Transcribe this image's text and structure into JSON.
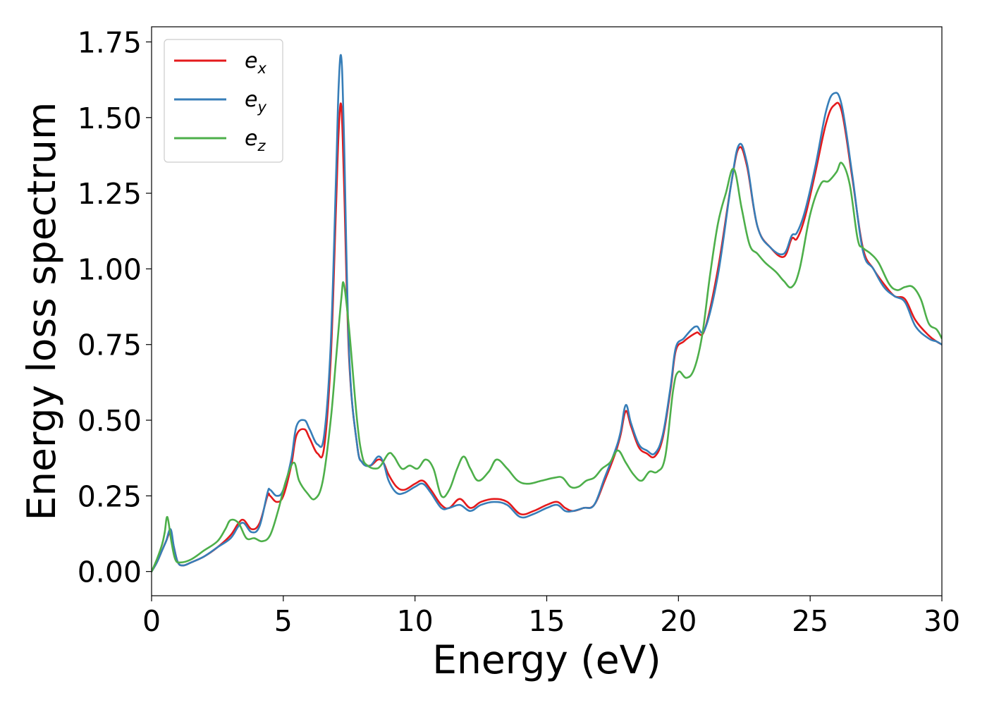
{
  "chart_data": {
    "type": "line",
    "xlabel": "Energy (eV)",
    "ylabel": "Energy loss spectrum",
    "xlim": [
      0,
      30
    ],
    "ylim": [
      -0.08,
      1.8
    ],
    "xticks": [
      "0",
      "5",
      "10",
      "15",
      "20",
      "25",
      "30"
    ],
    "yticks": [
      "0.00",
      "0.25",
      "0.50",
      "0.75",
      "1.00",
      "1.25",
      "1.50",
      "1.75"
    ],
    "grid": false,
    "legend_position": "upper-left",
    "series": [
      {
        "name": "e_x",
        "legend_main": "e",
        "legend_sub": "x",
        "color": "#e41a1c",
        "x": [
          0,
          0.2,
          0.4,
          0.55,
          0.72,
          0.85,
          1.0,
          1.2,
          1.5,
          2.0,
          2.5,
          3.0,
          3.3,
          3.5,
          3.8,
          4.1,
          4.4,
          4.5,
          4.75,
          5.0,
          5.3,
          5.5,
          5.8,
          6.0,
          6.3,
          6.55,
          6.8,
          7.0,
          7.1,
          7.2,
          7.3,
          7.5,
          7.8,
          8.0,
          8.3,
          8.6,
          8.8,
          9.0,
          9.3,
          9.6,
          10.0,
          10.3,
          10.6,
          11.0,
          11.3,
          11.7,
          12.1,
          12.5,
          13.0,
          13.5,
          14.0,
          14.5,
          15.0,
          15.4,
          15.7,
          16.0,
          16.4,
          16.8,
          17.2,
          17.6,
          17.8,
          18.0,
          18.2,
          18.5,
          18.8,
          19.1,
          19.4,
          19.7,
          19.9,
          20.2,
          20.5,
          20.7,
          21.0,
          21.5,
          22.0,
          22.3,
          22.6,
          23.0,
          23.5,
          24.0,
          24.3,
          24.5,
          24.8,
          25.2,
          25.6,
          25.9,
          26.2,
          26.6,
          27.0,
          27.4,
          27.8,
          28.2,
          28.6,
          29.0,
          29.5,
          29.8,
          30.0
        ],
        "y": [
          0.0,
          0.03,
          0.07,
          0.1,
          0.13,
          0.08,
          0.03,
          0.02,
          0.03,
          0.05,
          0.08,
          0.12,
          0.16,
          0.17,
          0.14,
          0.16,
          0.25,
          0.25,
          0.23,
          0.25,
          0.35,
          0.45,
          0.47,
          0.44,
          0.39,
          0.41,
          0.7,
          1.2,
          1.45,
          1.54,
          1.3,
          0.7,
          0.42,
          0.36,
          0.35,
          0.37,
          0.36,
          0.32,
          0.28,
          0.27,
          0.29,
          0.3,
          0.27,
          0.22,
          0.21,
          0.24,
          0.21,
          0.23,
          0.24,
          0.23,
          0.19,
          0.2,
          0.22,
          0.23,
          0.21,
          0.2,
          0.21,
          0.22,
          0.3,
          0.39,
          0.45,
          0.53,
          0.48,
          0.41,
          0.39,
          0.38,
          0.44,
          0.6,
          0.73,
          0.76,
          0.78,
          0.79,
          0.8,
          1.0,
          1.28,
          1.4,
          1.34,
          1.14,
          1.07,
          1.04,
          1.1,
          1.1,
          1.17,
          1.32,
          1.48,
          1.54,
          1.52,
          1.3,
          1.07,
          1.0,
          0.95,
          0.91,
          0.9,
          0.83,
          0.78,
          0.76,
          0.75
        ]
      },
      {
        "name": "e_y",
        "legend_main": "e",
        "legend_sub": "y",
        "color": "#377eb8",
        "x": [
          0,
          0.2,
          0.4,
          0.55,
          0.72,
          0.85,
          1.0,
          1.2,
          1.5,
          2.0,
          2.5,
          3.0,
          3.3,
          3.5,
          3.8,
          4.1,
          4.4,
          4.5,
          4.75,
          5.0,
          5.3,
          5.5,
          5.8,
          6.0,
          6.3,
          6.55,
          6.8,
          7.0,
          7.1,
          7.2,
          7.3,
          7.5,
          7.8,
          8.0,
          8.3,
          8.6,
          8.8,
          9.0,
          9.3,
          9.6,
          10.0,
          10.3,
          10.6,
          11.0,
          11.3,
          11.7,
          12.1,
          12.5,
          13.0,
          13.5,
          14.0,
          14.5,
          15.0,
          15.4,
          15.7,
          16.0,
          16.4,
          16.8,
          17.2,
          17.6,
          17.8,
          18.0,
          18.2,
          18.5,
          18.8,
          19.1,
          19.4,
          19.7,
          19.9,
          20.2,
          20.5,
          20.7,
          21.0,
          21.5,
          22.0,
          22.3,
          22.6,
          23.0,
          23.5,
          24.0,
          24.3,
          24.5,
          24.8,
          25.2,
          25.6,
          25.9,
          26.2,
          26.6,
          27.0,
          27.4,
          27.8,
          28.2,
          28.6,
          29.0,
          29.5,
          29.8,
          30.0
        ],
        "y": [
          0.0,
          0.03,
          0.07,
          0.1,
          0.14,
          0.08,
          0.03,
          0.02,
          0.03,
          0.05,
          0.08,
          0.11,
          0.15,
          0.16,
          0.13,
          0.15,
          0.26,
          0.27,
          0.25,
          0.27,
          0.37,
          0.48,
          0.5,
          0.47,
          0.42,
          0.45,
          0.75,
          1.3,
          1.6,
          1.7,
          1.45,
          0.72,
          0.42,
          0.36,
          0.35,
          0.38,
          0.36,
          0.3,
          0.26,
          0.26,
          0.28,
          0.29,
          0.26,
          0.21,
          0.21,
          0.22,
          0.2,
          0.22,
          0.23,
          0.22,
          0.18,
          0.19,
          0.21,
          0.22,
          0.2,
          0.2,
          0.21,
          0.22,
          0.31,
          0.4,
          0.46,
          0.55,
          0.49,
          0.42,
          0.4,
          0.39,
          0.45,
          0.61,
          0.74,
          0.77,
          0.8,
          0.81,
          0.8,
          0.98,
          1.28,
          1.41,
          1.35,
          1.14,
          1.07,
          1.05,
          1.11,
          1.12,
          1.19,
          1.34,
          1.52,
          1.58,
          1.54,
          1.31,
          1.06,
          1.0,
          0.94,
          0.91,
          0.89,
          0.81,
          0.77,
          0.76,
          0.75
        ]
      },
      {
        "name": "e_z",
        "legend_main": "e",
        "legend_sub": "z",
        "color": "#4daf4a",
        "x": [
          0,
          0.2,
          0.4,
          0.5,
          0.6,
          0.75,
          0.9,
          1.1,
          1.5,
          2.0,
          2.5,
          2.8,
          3.0,
          3.3,
          3.6,
          3.9,
          4.2,
          4.5,
          4.8,
          5.1,
          5.4,
          5.6,
          5.9,
          6.2,
          6.5,
          6.8,
          7.0,
          7.2,
          7.3,
          7.5,
          7.8,
          8.0,
          8.2,
          8.5,
          8.7,
          9.0,
          9.2,
          9.5,
          9.8,
          10.1,
          10.4,
          10.7,
          11.0,
          11.3,
          11.6,
          11.85,
          12.1,
          12.4,
          12.8,
          13.1,
          13.5,
          13.9,
          14.3,
          14.8,
          15.3,
          15.6,
          15.9,
          16.2,
          16.5,
          16.8,
          17.1,
          17.4,
          17.7,
          18.0,
          18.3,
          18.6,
          18.9,
          19.2,
          19.5,
          19.8,
          20.0,
          20.3,
          20.6,
          20.9,
          21.2,
          21.5,
          21.8,
          22.1,
          22.4,
          22.7,
          23.0,
          23.3,
          23.7,
          24.0,
          24.3,
          24.6,
          25.0,
          25.4,
          25.7,
          26.0,
          26.2,
          26.5,
          26.8,
          27.0,
          27.3,
          27.6,
          28.0,
          28.3,
          28.6,
          28.9,
          29.2,
          29.5,
          29.8,
          30.0
        ],
        "y": [
          0.0,
          0.04,
          0.09,
          0.13,
          0.18,
          0.1,
          0.04,
          0.03,
          0.04,
          0.07,
          0.1,
          0.14,
          0.17,
          0.16,
          0.11,
          0.11,
          0.1,
          0.12,
          0.2,
          0.3,
          0.36,
          0.3,
          0.26,
          0.24,
          0.3,
          0.5,
          0.7,
          0.9,
          0.95,
          0.8,
          0.5,
          0.38,
          0.35,
          0.34,
          0.35,
          0.39,
          0.38,
          0.34,
          0.35,
          0.34,
          0.37,
          0.34,
          0.25,
          0.27,
          0.34,
          0.38,
          0.34,
          0.3,
          0.33,
          0.37,
          0.34,
          0.3,
          0.29,
          0.3,
          0.31,
          0.31,
          0.28,
          0.28,
          0.3,
          0.31,
          0.34,
          0.36,
          0.4,
          0.36,
          0.32,
          0.3,
          0.33,
          0.33,
          0.38,
          0.6,
          0.66,
          0.64,
          0.67,
          0.78,
          0.98,
          1.15,
          1.25,
          1.33,
          1.2,
          1.08,
          1.05,
          1.02,
          0.99,
          0.96,
          0.94,
          1.0,
          1.18,
          1.28,
          1.29,
          1.32,
          1.35,
          1.28,
          1.1,
          1.07,
          1.05,
          1.02,
          0.95,
          0.93,
          0.94,
          0.94,
          0.9,
          0.82,
          0.8,
          0.77
        ]
      }
    ]
  }
}
